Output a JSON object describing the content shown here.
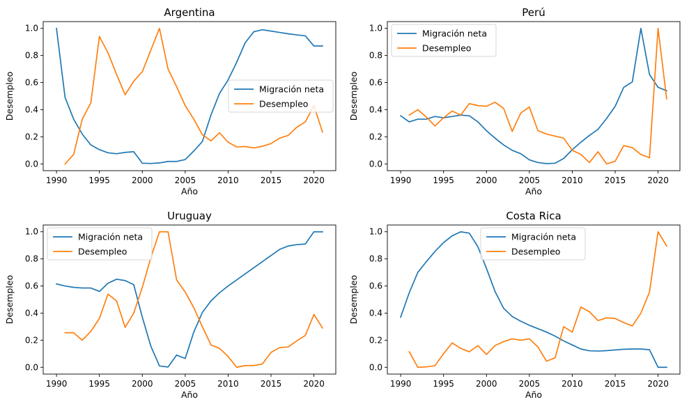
{
  "chart_data": [
    {
      "type": "line",
      "title": "Argentina",
      "xlabel": "Año",
      "ylabel": "Desempleo",
      "xlim": [
        1988.45,
        2022.55
      ],
      "ylim": [
        -0.05,
        1.05
      ],
      "xticks": [
        1990,
        1995,
        2000,
        2005,
        2010,
        2015,
        2020
      ],
      "yticks": [
        0.0,
        0.2,
        0.4,
        0.6,
        0.8,
        1.0
      ],
      "legend": "center-right",
      "grid": false,
      "series": [
        {
          "name": "Migración neta",
          "color": "#1f77b4",
          "x": [
            1990,
            1991,
            1992,
            1993,
            1994,
            1995,
            1996,
            1997,
            1998,
            1999,
            2000,
            2001,
            2002,
            2003,
            2004,
            2005,
            2006,
            2007,
            2008,
            2009,
            2010,
            2011,
            2012,
            2013,
            2014,
            2015,
            2016,
            2017,
            2018,
            2019,
            2020,
            2021
          ],
          "y": [
            1.0,
            0.49,
            0.33,
            0.22,
            0.14,
            0.105,
            0.082,
            0.075,
            0.085,
            0.09,
            0.005,
            0.003,
            0.007,
            0.018,
            0.018,
            0.032,
            0.095,
            0.165,
            0.36,
            0.52,
            0.62,
            0.75,
            0.895,
            0.975,
            0.99,
            0.98,
            0.97,
            0.96,
            0.952,
            0.945,
            0.87,
            0.87
          ]
        },
        {
          "name": "Desempleo",
          "color": "#ff7f0e",
          "x": [
            1991,
            1992,
            1993,
            1994,
            1995,
            1996,
            1997,
            1998,
            1999,
            2000,
            2001,
            2002,
            2003,
            2004,
            2005,
            2006,
            2007,
            2008,
            2009,
            2010,
            2011,
            2012,
            2013,
            2014,
            2015,
            2016,
            2017,
            2018,
            2019,
            2020,
            2021
          ],
          "y": [
            0.0,
            0.07,
            0.33,
            0.45,
            0.94,
            0.82,
            0.66,
            0.51,
            0.61,
            0.68,
            0.84,
            1.0,
            0.7,
            0.57,
            0.43,
            0.33,
            0.215,
            0.17,
            0.23,
            0.16,
            0.125,
            0.128,
            0.118,
            0.13,
            0.15,
            0.19,
            0.21,
            0.27,
            0.31,
            0.43,
            0.235
          ]
        }
      ]
    },
    {
      "type": "line",
      "title": "Perú",
      "xlabel": "Año",
      "ylabel": "Desempleo",
      "xlim": [
        1988.45,
        2022.55
      ],
      "ylim": [
        -0.05,
        1.05
      ],
      "xticks": [
        1990,
        1995,
        2000,
        2005,
        2010,
        2015,
        2020
      ],
      "yticks": [
        0.0,
        0.2,
        0.4,
        0.6,
        0.8,
        1.0
      ],
      "legend": "upper-left",
      "grid": false,
      "series": [
        {
          "name": "Migración neta",
          "color": "#1f77b4",
          "x": [
            1990,
            1991,
            1992,
            1993,
            1994,
            1995,
            1996,
            1997,
            1998,
            1999,
            2000,
            2001,
            2002,
            2003,
            2004,
            2005,
            2006,
            2007,
            2008,
            2009,
            2010,
            2011,
            2012,
            2013,
            2014,
            2015,
            2016,
            2017,
            2018,
            2019,
            2020,
            2021
          ],
          "y": [
            0.355,
            0.31,
            0.33,
            0.33,
            0.35,
            0.34,
            0.35,
            0.36,
            0.355,
            0.31,
            0.245,
            0.19,
            0.14,
            0.1,
            0.075,
            0.03,
            0.01,
            0.002,
            0.005,
            0.04,
            0.105,
            0.16,
            0.21,
            0.255,
            0.335,
            0.425,
            0.565,
            0.605,
            1.0,
            0.66,
            0.565,
            0.54
          ]
        },
        {
          "name": "Desempleo",
          "color": "#ff7f0e",
          "x": [
            1991,
            1992,
            1993,
            1994,
            1995,
            1996,
            1997,
            1998,
            1999,
            2000,
            2001,
            2002,
            2003,
            2004,
            2005,
            2006,
            2007,
            2008,
            2009,
            2010,
            2011,
            2012,
            2013,
            2014,
            2015,
            2016,
            2017,
            2018,
            2019,
            2020,
            2021
          ],
          "y": [
            0.36,
            0.4,
            0.345,
            0.28,
            0.34,
            0.39,
            0.36,
            0.445,
            0.43,
            0.425,
            0.455,
            0.41,
            0.24,
            0.375,
            0.42,
            0.245,
            0.22,
            0.205,
            0.19,
            0.1,
            0.07,
            0.01,
            0.09,
            0.0,
            0.02,
            0.135,
            0.12,
            0.07,
            0.045,
            1.0,
            0.48
          ]
        }
      ]
    },
    {
      "type": "line",
      "title": "Uruguay",
      "xlabel": "Año",
      "ylabel": "Desempleo",
      "xlim": [
        1988.45,
        2022.55
      ],
      "ylim": [
        -0.05,
        1.05
      ],
      "xticks": [
        1990,
        1995,
        2000,
        2005,
        2010,
        2015,
        2020
      ],
      "yticks": [
        0.0,
        0.2,
        0.4,
        0.6,
        0.8,
        1.0
      ],
      "legend": "upper-left",
      "grid": false,
      "series": [
        {
          "name": "Migración neta",
          "color": "#1f77b4",
          "x": [
            1990,
            1991,
            1992,
            1993,
            1994,
            1995,
            1996,
            1997,
            1998,
            1999,
            2000,
            2001,
            2002,
            2003,
            2004,
            2005,
            2006,
            2007,
            2008,
            2009,
            2010,
            2011,
            2012,
            2013,
            2014,
            2015,
            2016,
            2017,
            2018,
            2019,
            2020,
            2021
          ],
          "y": [
            0.615,
            0.6,
            0.59,
            0.585,
            0.585,
            0.56,
            0.62,
            0.65,
            0.64,
            0.61,
            0.37,
            0.155,
            0.01,
            0.002,
            0.09,
            0.065,
            0.26,
            0.405,
            0.49,
            0.55,
            0.6,
            0.645,
            0.69,
            0.735,
            0.78,
            0.825,
            0.87,
            0.895,
            0.905,
            0.91,
            1.0,
            1.0
          ]
        },
        {
          "name": "Desempleo",
          "color": "#ff7f0e",
          "x": [
            1991,
            1992,
            1993,
            1994,
            1995,
            1996,
            1997,
            1998,
            1999,
            2000,
            2001,
            2002,
            2003,
            2004,
            2005,
            2006,
            2007,
            2008,
            2009,
            2010,
            2011,
            2012,
            2013,
            2014,
            2015,
            2016,
            2017,
            2018,
            2019,
            2020,
            2021
          ],
          "y": [
            0.255,
            0.255,
            0.2,
            0.265,
            0.36,
            0.54,
            0.49,
            0.295,
            0.4,
            0.59,
            0.81,
            1.0,
            1.0,
            0.645,
            0.555,
            0.44,
            0.3,
            0.165,
            0.14,
            0.08,
            0.0,
            0.013,
            0.013,
            0.025,
            0.11,
            0.145,
            0.15,
            0.195,
            0.235,
            0.39,
            0.29
          ]
        }
      ]
    },
    {
      "type": "line",
      "title": "Costa Rica",
      "xlabel": "Año",
      "ylabel": "Desempleo",
      "xlim": [
        1988.45,
        2022.55
      ],
      "ylim": [
        -0.05,
        1.05
      ],
      "xticks": [
        1990,
        1995,
        2000,
        2005,
        2010,
        2015,
        2020
      ],
      "yticks": [
        0.0,
        0.2,
        0.4,
        0.6,
        0.8,
        1.0
      ],
      "legend": "upper-center",
      "grid": false,
      "series": [
        {
          "name": "Migración neta",
          "color": "#1f77b4",
          "x": [
            1990,
            1991,
            1992,
            1993,
            1994,
            1995,
            1996,
            1997,
            1998,
            1999,
            2000,
            2001,
            2002,
            2003,
            2004,
            2005,
            2006,
            2007,
            2008,
            2009,
            2010,
            2011,
            2012,
            2013,
            2014,
            2015,
            2016,
            2017,
            2018,
            2019,
            2020,
            2021
          ],
          "y": [
            0.37,
            0.55,
            0.7,
            0.78,
            0.855,
            0.92,
            0.97,
            1.0,
            0.99,
            0.89,
            0.73,
            0.56,
            0.435,
            0.375,
            0.34,
            0.31,
            0.285,
            0.26,
            0.23,
            0.195,
            0.165,
            0.135,
            0.122,
            0.12,
            0.123,
            0.128,
            0.133,
            0.135,
            0.135,
            0.13,
            0.0,
            0.0
          ]
        },
        {
          "name": "Desempleo",
          "color": "#ff7f0e",
          "x": [
            1991,
            1992,
            1993,
            1994,
            1995,
            1996,
            1997,
            1998,
            1999,
            2000,
            2001,
            2002,
            2003,
            2004,
            2005,
            2006,
            2007,
            2008,
            2009,
            2010,
            2011,
            2012,
            2013,
            2014,
            2015,
            2016,
            2017,
            2018,
            2019,
            2020,
            2021
          ],
          "y": [
            0.115,
            0.0,
            0.003,
            0.012,
            0.1,
            0.18,
            0.14,
            0.115,
            0.16,
            0.095,
            0.16,
            0.19,
            0.21,
            0.2,
            0.21,
            0.15,
            0.045,
            0.07,
            0.3,
            0.26,
            0.445,
            0.41,
            0.345,
            0.365,
            0.36,
            0.33,
            0.305,
            0.4,
            0.555,
            1.0,
            0.895
          ]
        }
      ]
    }
  ]
}
